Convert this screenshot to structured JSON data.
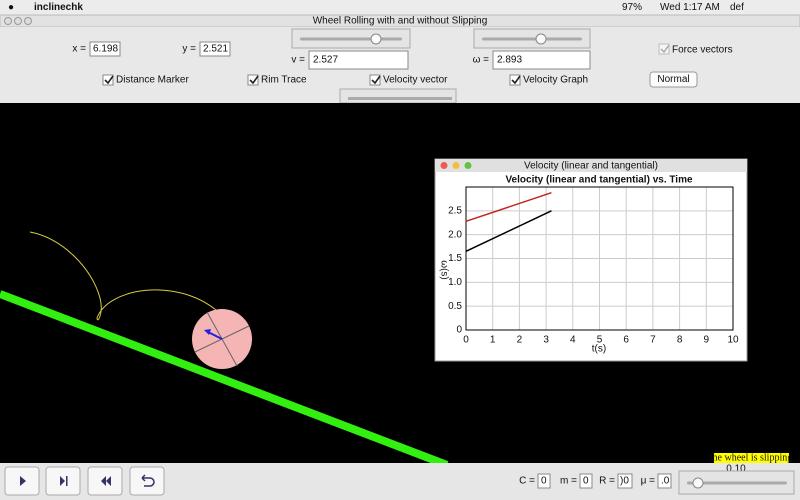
{
  "menu_bar": {
    "app_name": "inclinechk",
    "battery": "97%",
    "clock": "Wed 1:17 AM",
    "user": "def"
  },
  "window_title": "Wheel Rolling with and without Slipping",
  "controls": {
    "x_label": "x =",
    "x_value": "6.198",
    "y_label": "y =",
    "y_value": "2.521",
    "v_label": "v =",
    "v_value": "2.527",
    "omega_label": "ω =",
    "omega_value": "2.893",
    "force_vectors": "Force vectors",
    "distance_marker": "Distance Marker",
    "rim_trace": "Rim Trace",
    "velocity_vector": "Velocity vector",
    "velocity_graph": "Velocity Graph",
    "mode_button": "Normal"
  },
  "graph_window_title": "Velocity (linear and tangential)",
  "chart_data": {
    "type": "line",
    "title": "Velocity (linear and tangential) vs. Time",
    "x_label": "t(s)",
    "y_label": "ω(s)",
    "x": [
      0,
      3.2
    ],
    "series": [
      {
        "color": "#c0281e",
        "values": [
          2.28,
          2.88
        ]
      },
      {
        "color": "#000000",
        "values": [
          1.65,
          2.5
        ]
      }
    ],
    "xlim": [
      0,
      10
    ],
    "xticks": [
      0,
      1,
      2,
      3,
      4,
      5,
      6,
      7,
      8,
      9,
      10
    ],
    "ylim": [
      0,
      3
    ],
    "yticks": [
      0,
      0.5,
      {
        "value": 1,
        "label": "1.0"
      },
      1.5,
      {
        "value": 2,
        "label": "2.0"
      },
      2.5
    ],
    "grid": true
  },
  "bottom_bar": {
    "c_label": "C =",
    "c_value": "0",
    "m_label": "m =",
    "m_value": "0",
    "r_label": "R =",
    "r_value": ")0",
    "mu_label": "μ =",
    "mu_value": ".0",
    "status": "the wheel is slipping",
    "slider_value": "0.10"
  }
}
